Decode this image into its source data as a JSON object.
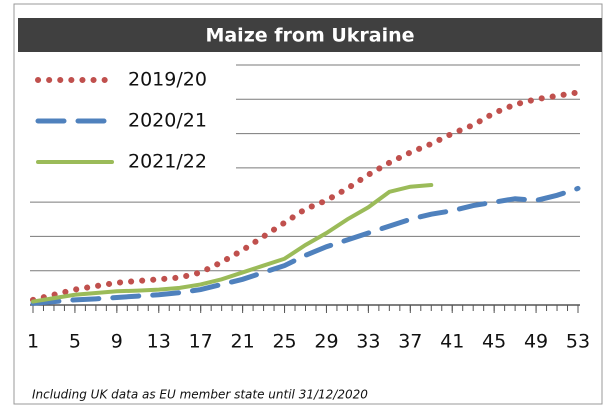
{
  "chart_data": {
    "type": "line",
    "title": "Maize from Ukraine",
    "note": "Including UK data as EU member state until 31/12/2020",
    "x": [
      1,
      3,
      5,
      7,
      9,
      11,
      13,
      15,
      17,
      19,
      21,
      23,
      25,
      27,
      29,
      31,
      33,
      35,
      37,
      39,
      41,
      43,
      45,
      47,
      49,
      51,
      53
    ],
    "xlim": [
      1,
      53
    ],
    "xticks": [
      1,
      5,
      9,
      13,
      17,
      21,
      25,
      29,
      33,
      37,
      41,
      45,
      49,
      53
    ],
    "ylim": [
      0,
      7
    ],
    "yticks": [
      0,
      1,
      2,
      3,
      4,
      5,
      6,
      7
    ],
    "show_ytick_labels": false,
    "grid": true,
    "series": [
      {
        "name": "2019/20",
        "color": "#c0504d",
        "style": "dotted",
        "values": [
          0.15,
          0.3,
          0.45,
          0.55,
          0.65,
          0.7,
          0.75,
          0.8,
          0.95,
          1.25,
          1.6,
          2.0,
          2.4,
          2.8,
          3.05,
          3.4,
          3.8,
          4.15,
          4.45,
          4.7,
          5.0,
          5.25,
          5.6,
          5.85,
          6.0,
          6.1,
          6.2
        ]
      },
      {
        "name": "2020/21",
        "color": "#4f81bd",
        "style": "dashed",
        "values": [
          0.05,
          0.1,
          0.15,
          0.18,
          0.22,
          0.26,
          0.3,
          0.36,
          0.45,
          0.6,
          0.75,
          0.95,
          1.15,
          1.45,
          1.7,
          1.9,
          2.1,
          2.3,
          2.5,
          2.65,
          2.75,
          2.9,
          3.0,
          3.1,
          3.05,
          3.2,
          3.4
        ]
      },
      {
        "name": "2021/22",
        "color": "#9bbb59",
        "style": "solid",
        "values": [
          0.1,
          0.2,
          0.3,
          0.35,
          0.4,
          0.42,
          0.45,
          0.5,
          0.6,
          0.75,
          0.95,
          1.15,
          1.35,
          1.75,
          2.1,
          2.5,
          2.85,
          3.3,
          3.45,
          3.5,
          null,
          null,
          null,
          null,
          null,
          null,
          null
        ]
      }
    ]
  }
}
